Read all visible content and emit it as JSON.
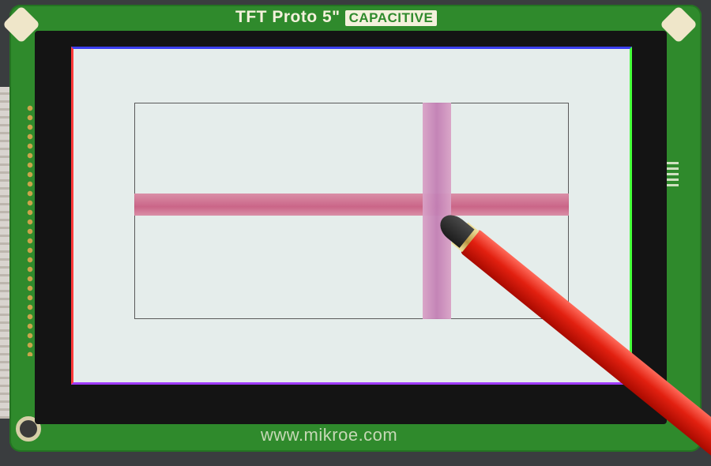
{
  "board": {
    "title": "TFT Proto 5\"",
    "badge": "CAPACITIVE",
    "url": "www.mikroe.com"
  },
  "colors": {
    "board_green": "#2f8a2c",
    "screen_background": "#e5edeb",
    "horizontal_bar": "#c95e82",
    "vertical_bar": "#c27fb4",
    "stylus": "#e22010"
  },
  "icons": [
    "stylus-icon"
  ]
}
